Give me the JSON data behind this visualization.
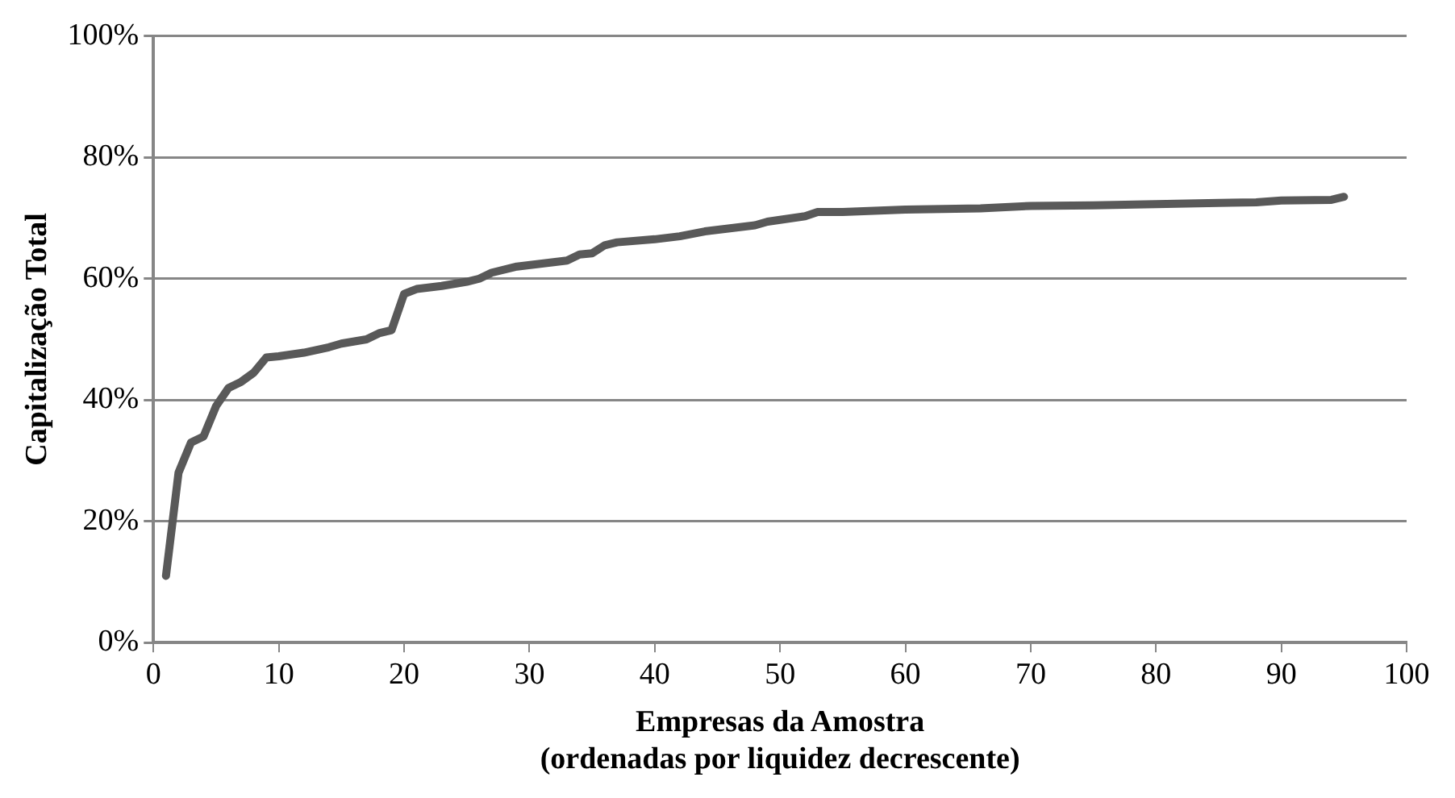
{
  "chart_data": {
    "type": "line",
    "xlabel": "Empresas da Amostra\n(ordenadas por liquidez decrescente)",
    "ylabel": "Capitalização Total",
    "series": [
      {
        "color": "#595959",
        "x": [
          1,
          2,
          3,
          4,
          5,
          6,
          7,
          8,
          9,
          10,
          12,
          14,
          15,
          17,
          18,
          19,
          20,
          21,
          23,
          25,
          26,
          27,
          29,
          31,
          33,
          34,
          35,
          36,
          37,
          40,
          42,
          44,
          46,
          48,
          49,
          51,
          52,
          53,
          55,
          60,
          66,
          70,
          75,
          80,
          85,
          88,
          90,
          94,
          95
        ],
        "values": [
          11,
          28,
          33,
          34,
          39,
          42,
          43,
          44.5,
          47,
          47.2,
          47.8,
          48.7,
          49.3,
          50,
          51,
          51.5,
          57.5,
          58.3,
          58.8,
          59.5,
          60,
          61,
          62,
          62.5,
          63,
          64,
          64.2,
          65.5,
          66,
          66.5,
          67,
          67.8,
          68.3,
          68.8,
          69.4,
          70,
          70.3,
          71,
          71,
          71.4,
          71.6,
          72,
          72.1,
          72.3,
          72.5,
          72.6,
          72.9,
          73,
          73.5
        ]
      }
    ],
    "xlim": [
      0,
      100
    ],
    "xticks": [
      0,
      10,
      20,
      30,
      40,
      50,
      60,
      70,
      80,
      90,
      100
    ],
    "ylim": [
      0,
      100
    ],
    "yticks": [
      {
        "value": 0,
        "label": "0%"
      },
      {
        "value": 20,
        "label": "20%"
      },
      {
        "value": 40,
        "label": "40%"
      },
      {
        "value": 60,
        "label": "60%"
      },
      {
        "value": 80,
        "label": "80%"
      },
      {
        "value": 100,
        "label": "100%"
      }
    ],
    "grid": "y",
    "legend": false,
    "marker": "none",
    "line_style": "solid"
  }
}
